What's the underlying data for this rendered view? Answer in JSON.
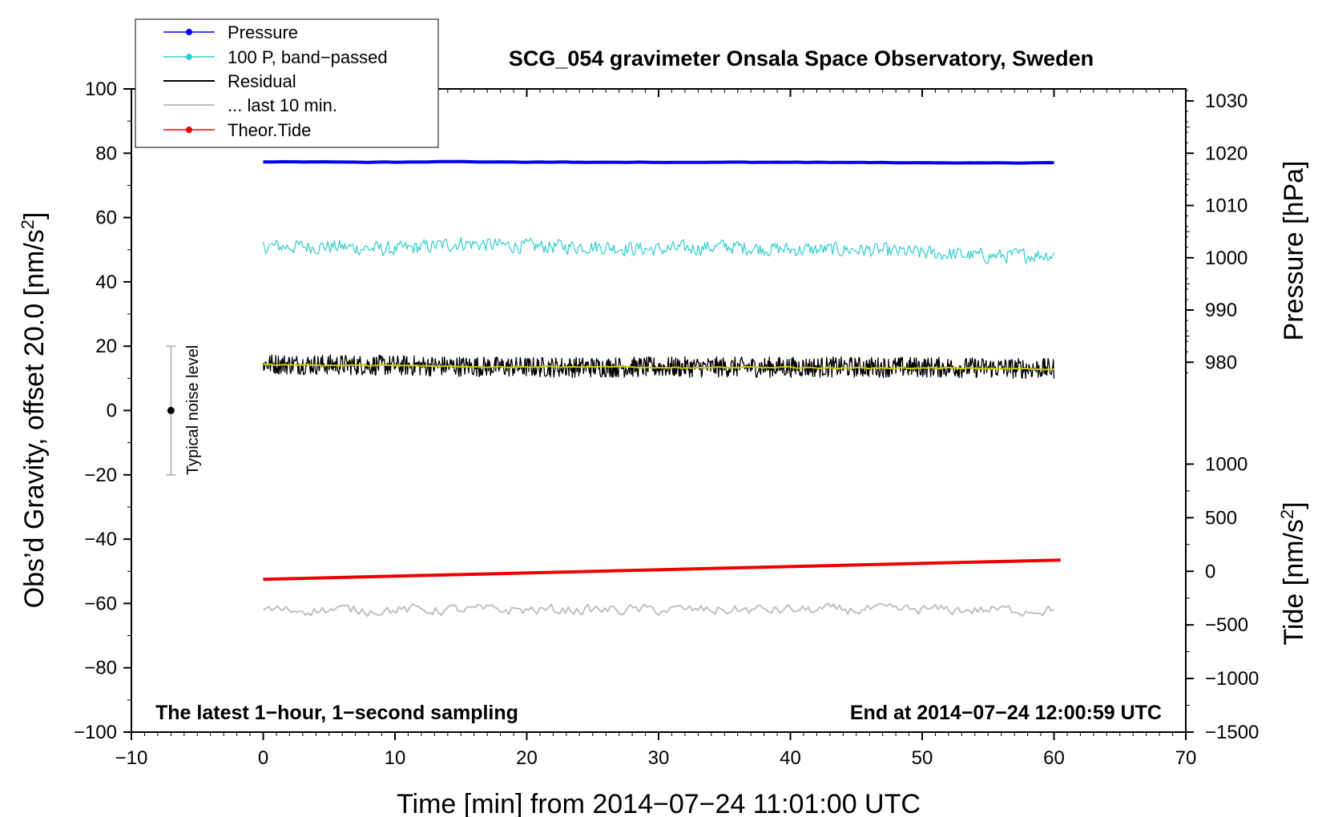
{
  "chart_data": {
    "type": "line",
    "title": "SCG_054 gravimeter Onsala Space Observatory, Sweden",
    "xlabel": "Time [min] from 2014−07−24 11:01:00 UTC",
    "ylabel": "Obs’d Gravity, offset 20.0 [nm/s2]",
    "ylabel_main": "Obs’d Gravity, offset 20.0 [nm/s",
    "ylabel_sup": "2",
    "ylabel_end": "]",
    "xlim": [
      -10,
      70
    ],
    "ylim": [
      -100,
      100
    ],
    "x_ticks": [
      "−10",
      "0",
      "10",
      "20",
      "30",
      "40",
      "50",
      "60",
      "70"
    ],
    "x_tick_values": [
      -10,
      0,
      10,
      20,
      30,
      40,
      50,
      60,
      70
    ],
    "y_ticks": [
      "100",
      "80",
      "60",
      "40",
      "20",
      "0",
      "−20",
      "−40",
      "−60",
      "−80",
      "−100"
    ],
    "y_tick_values": [
      100,
      80,
      60,
      40,
      20,
      0,
      -20,
      -40,
      -60,
      -80,
      -100
    ],
    "pressure_axis": {
      "label": "Pressure [hPa]",
      "ticks": [
        "1030",
        "1020",
        "1010",
        "1000",
        "990",
        "980"
      ],
      "tick_values": [
        1030,
        1020,
        1010,
        1000,
        990,
        980
      ],
      "mapping_note": "1020 hPa at 80 nm/s2, 980 hPa at 15 nm/s2"
    },
    "tide_axis": {
      "label_main": "Tide [nm/s",
      "label_sup": "2",
      "label_end": "]",
      "ticks": [
        "1000",
        "500",
        "0",
        "−500",
        "−1000",
        "−1500"
      ],
      "tick_values": [
        1000,
        500,
        0,
        -500,
        -1000,
        -1500
      ],
      "mapping_note": "0 nm/s2 at -50 on left axis, -1500 at -100"
    },
    "series": [
      {
        "name": "Pressure",
        "color": "#0000ee",
        "style": "thick-line",
        "x": [
          0,
          10,
          15,
          20,
          30,
          40,
          50,
          60
        ],
        "y": [
          77.3,
          77.2,
          77.4,
          77.2,
          77.2,
          77.2,
          77.0,
          77.0
        ]
      },
      {
        "name": "100 P, band−passed",
        "color": "#33cccc",
        "style": "noisy-line",
        "x": [
          0,
          5,
          10,
          15,
          20,
          25,
          30,
          35,
          40,
          45,
          50,
          55,
          60
        ],
        "y": [
          51,
          51,
          50,
          52,
          51,
          51,
          50,
          51,
          50,
          50,
          49,
          48,
          48.5
        ]
      },
      {
        "name": "Residual",
        "color": "#000000",
        "style": "noisy-line",
        "x": [
          0,
          10,
          20,
          30,
          40,
          50,
          60
        ],
        "y": [
          14.5,
          14,
          13.5,
          13.5,
          13.5,
          13.5,
          13
        ]
      },
      {
        "name": "Smoothed residual",
        "color": "#cccc00",
        "style": "line",
        "x": [
          0,
          10,
          20,
          30,
          40,
          50,
          60
        ],
        "y": [
          14.3,
          13.9,
          13.6,
          13.4,
          13.3,
          13.2,
          12.8
        ]
      },
      {
        "name": "... last 10 min.",
        "color": "#c0c0c0",
        "style": "noisy-line",
        "x": [
          0,
          10,
          20,
          30,
          40,
          50,
          60
        ],
        "y": [
          -62,
          -62,
          -62,
          -62,
          -62,
          -62,
          -62
        ]
      },
      {
        "name": "Theor.Tide",
        "color": "#ee0000",
        "style": "thick-line",
        "x": [
          0,
          60.5
        ],
        "y": [
          -52.5,
          -46.5
        ]
      }
    ],
    "legend": {
      "position": "top-left",
      "entries": [
        {
          "label": "Pressure",
          "color": "#0000ee",
          "marker": true
        },
        {
          "label": "100 P, band−passed",
          "color": "#33cccc",
          "marker": true
        },
        {
          "label": "Residual",
          "color": "#000000",
          "marker": false
        },
        {
          "label": "... last 10 min.",
          "color": "#c0c0c0",
          "marker": false
        },
        {
          "label": "Theor.Tide",
          "color": "#ee0000",
          "marker": true
        }
      ]
    },
    "noise_bar": {
      "label": "Typical noise level",
      "x": -7,
      "y_center": 0,
      "y_low": -20,
      "y_high": 20
    },
    "annotations": {
      "bottom_left": "The latest 1−hour, 1−second sampling",
      "bottom_right": "End at 2014−07−24 12:00:59 UTC"
    }
  }
}
